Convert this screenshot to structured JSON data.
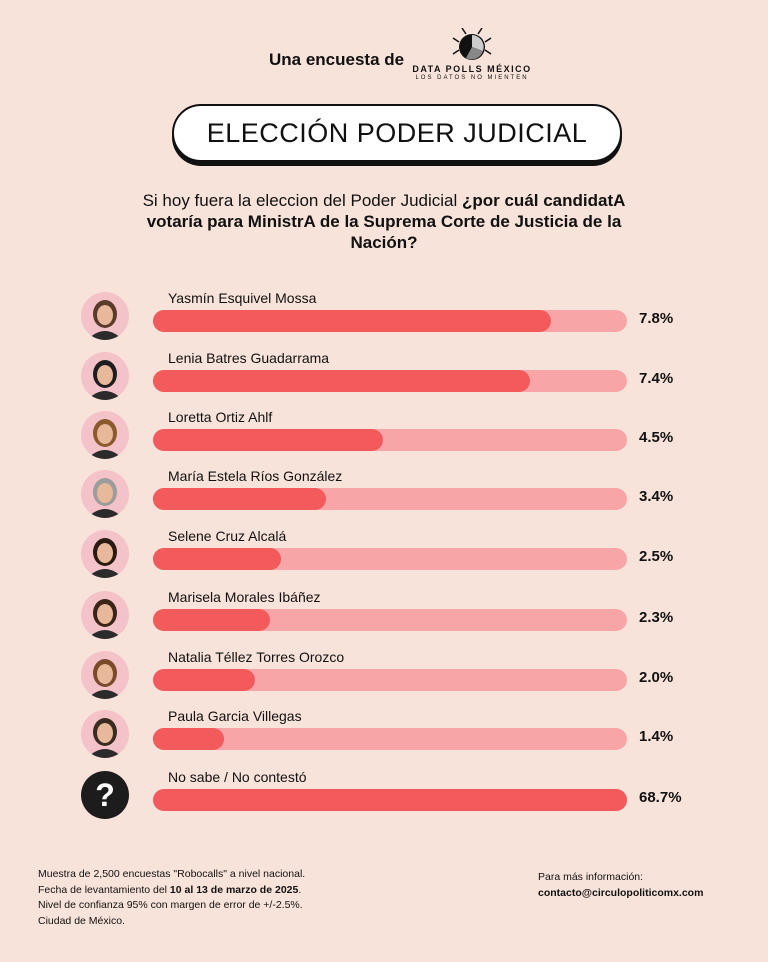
{
  "header": {
    "intro": "Una encuesta de",
    "brand_name": "DATA POLLS MÉXICO",
    "brand_tagline": "LOS DATOS NO MIENTEN"
  },
  "title": "ELECCIÓN PODER JUDICIAL",
  "question": {
    "part1": "Si hoy fuera la eleccion del Poder Judicial ",
    "part2": "¿por cuál candidatA votaría para MinistrA de la Suprema Corte de Justicia de la Nación?"
  },
  "chart_data": {
    "type": "bar",
    "orientation": "horizontal",
    "categories": [
      "Yasmín Esquivel Mossa",
      "Lenia Batres Guadarrama",
      "Loretta Ortiz Ahlf",
      "María Estela Ríos González",
      "Selene Cruz Alcalá",
      "Marisela Morales Ibáñez",
      "Natalia Téllez Torres Orozco",
      "Paula Garcia Villegas",
      "No sabe / No contestó"
    ],
    "values": [
      7.8,
      7.4,
      4.5,
      3.4,
      2.5,
      2.3,
      2.0,
      1.4,
      68.7
    ],
    "labels": [
      "7.8%",
      "7.4%",
      "4.5%",
      "3.4%",
      "2.5%",
      "2.3%",
      "2.0%",
      "1.4%",
      "68.7%"
    ],
    "unit": "%"
  },
  "unknown_icon": "question-mark-icon",
  "colors": {
    "background": "#f8e3db",
    "bar_fill": "#f25a5c",
    "bar_track": "#f8a5a8"
  },
  "footer": {
    "line1": "Muestra de 2,500 encuestas \"Robocalls\" a nivel nacional.",
    "line2_pre": "Fecha de levantamiento del ",
    "line2_bold": "10 al 13 de marzo de 2025",
    "line2_post": ".",
    "line3": "Nivel de confianza 95% con margen de error de +/-2.5%.",
    "line4": "Ciudad de México.",
    "info_label": "Para más información:",
    "email": "contacto@circulopoliticomx.com"
  }
}
